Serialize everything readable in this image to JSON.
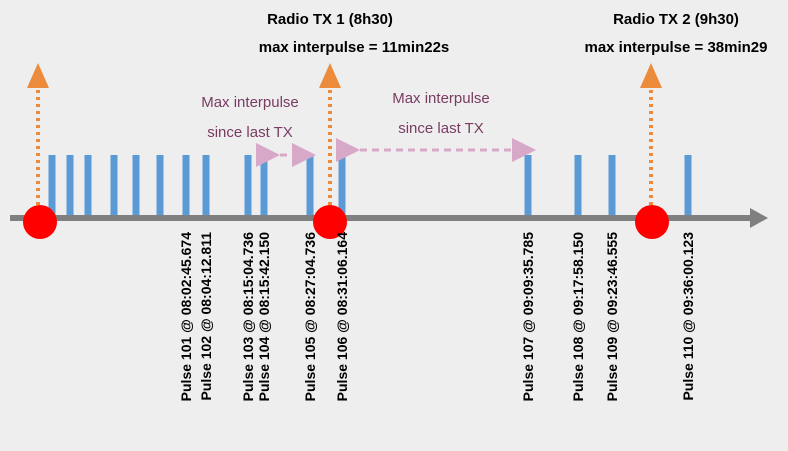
{
  "transmissions": [
    {
      "title": "Radio TX 1 (8h30)",
      "detail": "max interpulse = 11min22s"
    },
    {
      "title": "Radio TX 2 (9h30)",
      "detail": "max interpulse = 38min29"
    }
  ],
  "annotations": [
    [
      "Max interpulse",
      "since last TX"
    ],
    [
      "Max interpulse",
      "since last TX"
    ]
  ],
  "pulse_labels": [
    "Pulse 101 @ 08:02:45.674",
    "Pulse 102 @ 08:04:12.811",
    "Pulse 103 @ 08:15:04.736",
    "Pulse 104 @ 08:15:42.150",
    "Pulse 105 @ 08:27:04.736",
    "Pulse 106 @ 08:31:06.164",
    "Pulse 107 @ 09:09:35.785",
    "Pulse 108 @ 09:17:58.150",
    "Pulse 109 @ 09:23:46.555",
    "Pulse 110 @ 09:36:00.123"
  ]
}
